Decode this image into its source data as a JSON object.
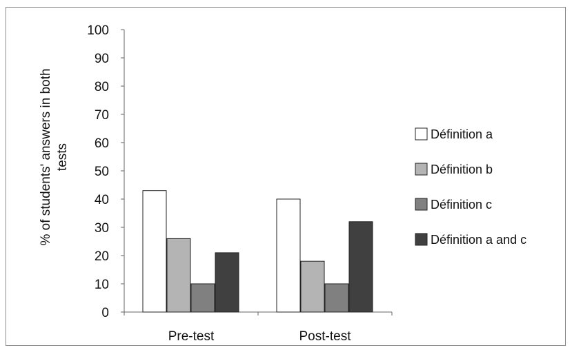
{
  "chart_data": {
    "type": "bar",
    "ylabel": "% of students' answers in both tests",
    "ylim": [
      0,
      100
    ],
    "yticks": [
      0,
      10,
      20,
      30,
      40,
      50,
      60,
      70,
      80,
      90,
      100
    ],
    "categories": [
      "Pre-test",
      "Post-test"
    ],
    "series": [
      {
        "name": "Définition a",
        "values": [
          43,
          40
        ],
        "color": "#ffffff"
      },
      {
        "name": "Définition b",
        "values": [
          26,
          18
        ],
        "color": "#b4b4b4"
      },
      {
        "name": "Définition c",
        "values": [
          10,
          10
        ],
        "color": "#808080"
      },
      {
        "name": "Définition a and c",
        "values": [
          21,
          32
        ],
        "color": "#404040"
      }
    ],
    "grid": false,
    "legend_position": "right"
  }
}
